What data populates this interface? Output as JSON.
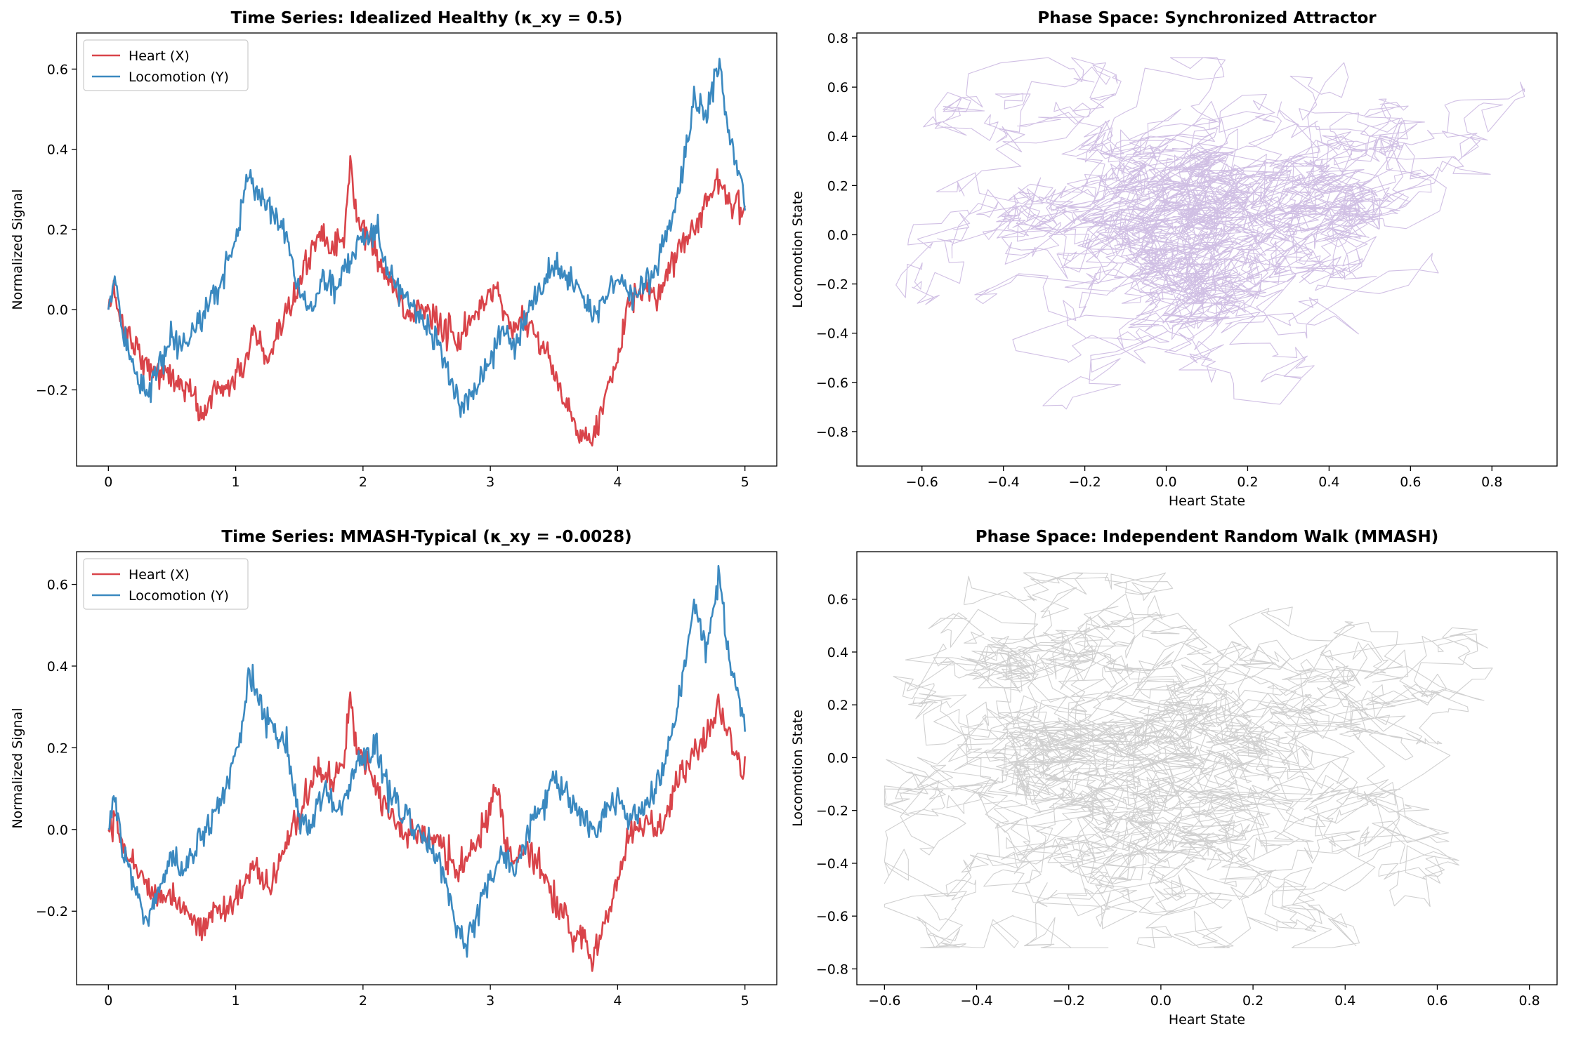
{
  "figure": {
    "background": "#ffffff"
  },
  "chart_data": [
    {
      "type": "line",
      "title": "Time Series: Idealized Healthy (κ_xy = 0.5)",
      "xlabel": "",
      "ylabel": "Normalized Signal",
      "xlim": [
        -0.25,
        5.25
      ],
      "ylim": [
        -0.39,
        0.69
      ],
      "xticks": [
        0,
        1,
        2,
        3,
        4,
        5
      ],
      "yticks": [
        -0.2,
        0.0,
        0.2,
        0.4,
        0.6
      ],
      "ytick_labels": [
        "−0.2",
        "0.0",
        "0.2",
        "0.4",
        "0.6"
      ],
      "xtick_labels": [
        "0",
        "1",
        "2",
        "3",
        "4",
        "5"
      ],
      "legend": {
        "placement": "top-left",
        "entries": [
          "Heart (X)",
          "Locomotion (Y)"
        ]
      },
      "grid": false,
      "series": [
        {
          "name": "Heart (X)",
          "color": "#d9444a",
          "keypoints": [
            [
              0,
              0
            ],
            [
              0.05,
              0.05
            ],
            [
              0.1,
              -0.03
            ],
            [
              0.2,
              -0.08
            ],
            [
              0.3,
              -0.14
            ],
            [
              0.45,
              -0.16
            ],
            [
              0.55,
              -0.18
            ],
            [
              0.65,
              -0.21
            ],
            [
              0.75,
              -0.27
            ],
            [
              0.82,
              -0.2
            ],
            [
              0.95,
              -0.19
            ],
            [
              1.05,
              -0.15
            ],
            [
              1.15,
              -0.05
            ],
            [
              1.25,
              -0.14
            ],
            [
              1.35,
              -0.06
            ],
            [
              1.45,
              0.02
            ],
            [
              1.55,
              0.1
            ],
            [
              1.65,
              0.2
            ],
            [
              1.75,
              0.15
            ],
            [
              1.85,
              0.18
            ],
            [
              1.9,
              0.36
            ],
            [
              1.95,
              0.22
            ],
            [
              2.05,
              0.18
            ],
            [
              2.15,
              0.1
            ],
            [
              2.25,
              0.05
            ],
            [
              2.35,
              -0.02
            ],
            [
              2.45,
              0.01
            ],
            [
              2.55,
              -0.02
            ],
            [
              2.65,
              -0.05
            ],
            [
              2.75,
              -0.08
            ],
            [
              2.85,
              -0.03
            ],
            [
              2.95,
              0.02
            ],
            [
              3.05,
              0.06
            ],
            [
              3.15,
              -0.05
            ],
            [
              3.25,
              -0.02
            ],
            [
              3.35,
              -0.05
            ],
            [
              3.45,
              -0.12
            ],
            [
              3.55,
              -0.2
            ],
            [
              3.65,
              -0.28
            ],
            [
              3.75,
              -0.3
            ],
            [
              3.8,
              -0.34
            ],
            [
              3.9,
              -0.22
            ],
            [
              4.0,
              -0.12
            ],
            [
              4.1,
              0.02
            ],
            [
              4.2,
              0.05
            ],
            [
              4.3,
              0.02
            ],
            [
              4.4,
              0.1
            ],
            [
              4.5,
              0.17
            ],
            [
              4.6,
              0.2
            ],
            [
              4.7,
              0.27
            ],
            [
              4.8,
              0.33
            ],
            [
              4.9,
              0.26
            ],
            [
              5.0,
              0.25
            ]
          ]
        },
        {
          "name": "Locomotion (Y)",
          "color": "#3b89c0",
          "keypoints": [
            [
              0,
              0
            ],
            [
              0.05,
              0.08
            ],
            [
              0.1,
              -0.05
            ],
            [
              0.2,
              -0.13
            ],
            [
              0.3,
              -0.22
            ],
            [
              0.4,
              -0.14
            ],
            [
              0.5,
              -0.08
            ],
            [
              0.6,
              -0.1
            ],
            [
              0.7,
              -0.03
            ],
            [
              0.8,
              0.02
            ],
            [
              0.9,
              0.08
            ],
            [
              1.0,
              0.18
            ],
            [
              1.05,
              0.25
            ],
            [
              1.1,
              0.34
            ],
            [
              1.2,
              0.28
            ],
            [
              1.3,
              0.24
            ],
            [
              1.4,
              0.2
            ],
            [
              1.5,
              0.02
            ],
            [
              1.6,
              0.01
            ],
            [
              1.7,
              0.08
            ],
            [
              1.8,
              0.06
            ],
            [
              1.9,
              0.12
            ],
            [
              2.0,
              0.18
            ],
            [
              2.1,
              0.2
            ],
            [
              2.2,
              0.1
            ],
            [
              2.3,
              0.05
            ],
            [
              2.4,
              0.01
            ],
            [
              2.5,
              -0.04
            ],
            [
              2.6,
              -0.08
            ],
            [
              2.7,
              -0.2
            ],
            [
              2.8,
              -0.25
            ],
            [
              2.9,
              -0.2
            ],
            [
              3.0,
              -0.12
            ],
            [
              3.1,
              -0.05
            ],
            [
              3.2,
              -0.1
            ],
            [
              3.3,
              0.01
            ],
            [
              3.4,
              0.05
            ],
            [
              3.5,
              0.12
            ],
            [
              3.6,
              0.08
            ],
            [
              3.7,
              0.05
            ],
            [
              3.8,
              -0.02
            ],
            [
              3.9,
              0.04
            ],
            [
              4.0,
              0.08
            ],
            [
              4.1,
              0.02
            ],
            [
              4.2,
              0.05
            ],
            [
              4.3,
              0.1
            ],
            [
              4.4,
              0.2
            ],
            [
              4.5,
              0.32
            ],
            [
              4.6,
              0.52
            ],
            [
              4.7,
              0.48
            ],
            [
              4.8,
              0.64
            ],
            [
              4.85,
              0.5
            ],
            [
              4.9,
              0.4
            ],
            [
              5.0,
              0.28
            ]
          ]
        }
      ]
    },
    {
      "type": "line",
      "title": "Phase Space: Synchronized Attractor",
      "xlabel": "Heart State",
      "ylabel": "Locomotion State",
      "xlim": [
        -0.76,
        0.96
      ],
      "ylim": [
        -0.94,
        0.82
      ],
      "xticks": [
        -0.6,
        -0.4,
        -0.2,
        0.0,
        0.2,
        0.4,
        0.6,
        0.8
      ],
      "xtick_labels": [
        "−0.6",
        "−0.4",
        "−0.2",
        "0.0",
        "0.2",
        "0.4",
        "0.6",
        "0.8"
      ],
      "yticks": [
        -0.8,
        -0.6,
        -0.4,
        -0.2,
        0.0,
        0.2,
        0.4,
        0.6,
        0.8
      ],
      "ytick_labels": [
        "−0.8",
        "−0.6",
        "−0.4",
        "−0.2",
        "0.0",
        "0.2",
        "0.4",
        "0.6",
        "0.8"
      ],
      "grid": false,
      "trajectory": {
        "color": "#c8b4df",
        "approx_points": 3000,
        "x_range": [
          -0.68,
          0.88
        ],
        "y_range": [
          -0.84,
          0.72
        ],
        "correlation": 0.25
      }
    },
    {
      "type": "line",
      "title": "Time Series: MMASH-Typical (κ_xy = -0.0028)",
      "xlabel": "",
      "ylabel": "Normalized Signal",
      "xlim": [
        -0.25,
        5.25
      ],
      "ylim": [
        -0.38,
        0.68
      ],
      "xticks": [
        0,
        1,
        2,
        3,
        4,
        5
      ],
      "yticks": [
        -0.2,
        0.0,
        0.2,
        0.4,
        0.6
      ],
      "ytick_labels": [
        "−0.2",
        "0.0",
        "0.2",
        "0.4",
        "0.6"
      ],
      "xtick_labels": [
        "0",
        "1",
        "2",
        "3",
        "4",
        "5"
      ],
      "legend": {
        "placement": "top-left",
        "entries": [
          "Heart (X)",
          "Locomotion (Y)"
        ]
      },
      "grid": false,
      "series": [
        {
          "name": "Heart (X)",
          "color": "#d9444a",
          "keypoints": [
            [
              0,
              0
            ],
            [
              0.05,
              0.05
            ],
            [
              0.1,
              -0.03
            ],
            [
              0.2,
              -0.08
            ],
            [
              0.3,
              -0.14
            ],
            [
              0.45,
              -0.16
            ],
            [
              0.55,
              -0.18
            ],
            [
              0.65,
              -0.21
            ],
            [
              0.75,
              -0.25
            ],
            [
              0.82,
              -0.2
            ],
            [
              0.95,
              -0.19
            ],
            [
              1.05,
              -0.15
            ],
            [
              1.15,
              -0.08
            ],
            [
              1.25,
              -0.16
            ],
            [
              1.35,
              -0.08
            ],
            [
              1.45,
              0.0
            ],
            [
              1.55,
              0.08
            ],
            [
              1.65,
              0.15
            ],
            [
              1.75,
              0.12
            ],
            [
              1.85,
              0.15
            ],
            [
              1.9,
              0.33
            ],
            [
              1.95,
              0.2
            ],
            [
              2.05,
              0.15
            ],
            [
              2.15,
              0.08
            ],
            [
              2.25,
              0.04
            ],
            [
              2.35,
              -0.02
            ],
            [
              2.45,
              0.0
            ],
            [
              2.55,
              -0.03
            ],
            [
              2.65,
              -0.06
            ],
            [
              2.75,
              -0.1
            ],
            [
              2.85,
              -0.06
            ],
            [
              2.95,
              0.0
            ],
            [
              3.05,
              0.1
            ],
            [
              3.15,
              -0.08
            ],
            [
              3.25,
              -0.05
            ],
            [
              3.35,
              -0.06
            ],
            [
              3.45,
              -0.13
            ],
            [
              3.55,
              -0.2
            ],
            [
              3.65,
              -0.26
            ],
            [
              3.75,
              -0.28
            ],
            [
              3.8,
              -0.33
            ],
            [
              3.9,
              -0.22
            ],
            [
              4.0,
              -0.12
            ],
            [
              4.1,
              0.0
            ],
            [
              4.2,
              0.02
            ],
            [
              4.3,
              -0.01
            ],
            [
              4.4,
              0.05
            ],
            [
              4.5,
              0.13
            ],
            [
              4.6,
              0.2
            ],
            [
              4.7,
              0.22
            ],
            [
              4.8,
              0.3
            ],
            [
              4.9,
              0.2
            ],
            [
              5.0,
              0.15
            ]
          ]
        },
        {
          "name": "Locomotion (Y)",
          "color": "#3b89c0",
          "keypoints": [
            [
              0,
              0
            ],
            [
              0.05,
              0.08
            ],
            [
              0.1,
              -0.05
            ],
            [
              0.2,
              -0.13
            ],
            [
              0.3,
              -0.23
            ],
            [
              0.4,
              -0.14
            ],
            [
              0.5,
              -0.07
            ],
            [
              0.6,
              -0.1
            ],
            [
              0.7,
              -0.03
            ],
            [
              0.8,
              0.02
            ],
            [
              0.9,
              0.08
            ],
            [
              1.0,
              0.18
            ],
            [
              1.05,
              0.25
            ],
            [
              1.1,
              0.38
            ],
            [
              1.2,
              0.3
            ],
            [
              1.3,
              0.25
            ],
            [
              1.4,
              0.2
            ],
            [
              1.5,
              0.02
            ],
            [
              1.6,
              0.01
            ],
            [
              1.7,
              0.1
            ],
            [
              1.8,
              0.05
            ],
            [
              1.9,
              0.12
            ],
            [
              2.0,
              0.18
            ],
            [
              2.1,
              0.2
            ],
            [
              2.2,
              0.1
            ],
            [
              2.3,
              0.05
            ],
            [
              2.4,
              0.01
            ],
            [
              2.5,
              -0.04
            ],
            [
              2.6,
              -0.08
            ],
            [
              2.7,
              -0.2
            ],
            [
              2.8,
              -0.28
            ],
            [
              2.9,
              -0.2
            ],
            [
              3.0,
              -0.12
            ],
            [
              3.1,
              -0.05
            ],
            [
              3.2,
              -0.1
            ],
            [
              3.3,
              0.01
            ],
            [
              3.4,
              0.05
            ],
            [
              3.5,
              0.12
            ],
            [
              3.6,
              0.08
            ],
            [
              3.7,
              0.04
            ],
            [
              3.8,
              -0.02
            ],
            [
              3.9,
              0.04
            ],
            [
              4.0,
              0.08
            ],
            [
              4.1,
              0.02
            ],
            [
              4.2,
              0.05
            ],
            [
              4.3,
              0.1
            ],
            [
              4.4,
              0.2
            ],
            [
              4.5,
              0.35
            ],
            [
              4.6,
              0.55
            ],
            [
              4.7,
              0.45
            ],
            [
              4.8,
              0.62
            ],
            [
              4.85,
              0.48
            ],
            [
              4.9,
              0.38
            ],
            [
              5.0,
              0.26
            ]
          ]
        }
      ]
    },
    {
      "type": "line",
      "title": "Phase Space: Independent Random Walk (MMASH)",
      "xlabel": "Heart State",
      "ylabel": "Locomotion State",
      "xlim": [
        -0.66,
        0.86
      ],
      "ylim": [
        -0.86,
        0.78
      ],
      "xticks": [
        -0.6,
        -0.4,
        -0.2,
        0.0,
        0.2,
        0.4,
        0.6,
        0.8
      ],
      "xtick_labels": [
        "−0.6",
        "−0.4",
        "−0.2",
        "0.0",
        "0.2",
        "0.4",
        "0.6",
        "0.8"
      ],
      "yticks": [
        -0.8,
        -0.6,
        -0.4,
        -0.2,
        0.0,
        0.2,
        0.4,
        0.6
      ],
      "ytick_labels": [
        "−0.8",
        "−0.6",
        "−0.4",
        "−0.2",
        "0.0",
        "0.2",
        "0.4",
        "0.6"
      ],
      "grid": false,
      "trajectory": {
        "color": "#c8c8c8",
        "approx_points": 3000,
        "x_range": [
          -0.6,
          0.78
        ],
        "y_range": [
          -0.72,
          0.7
        ],
        "correlation": 0.0
      }
    }
  ]
}
